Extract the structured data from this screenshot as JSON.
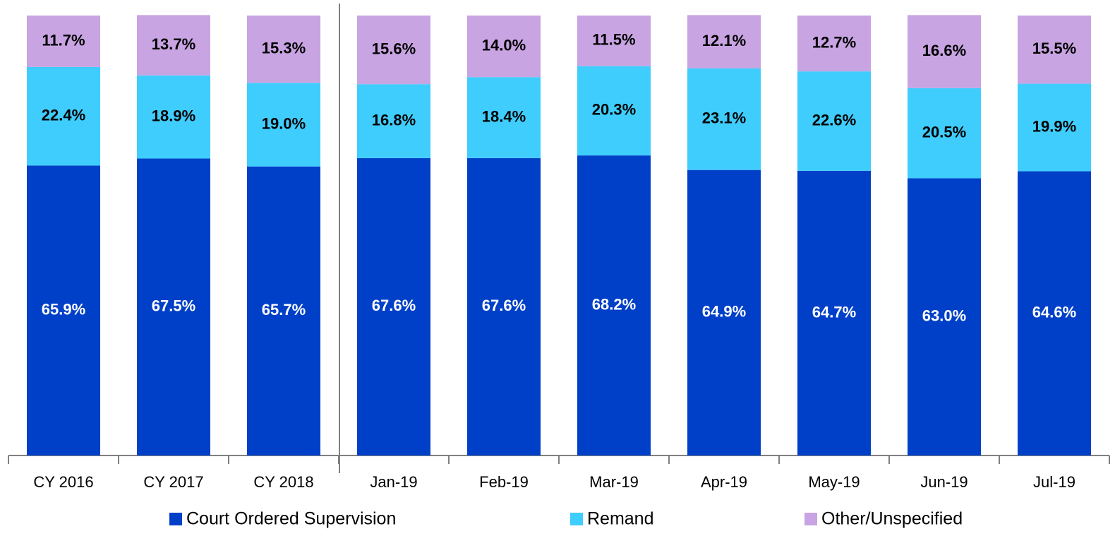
{
  "chart_data": {
    "type": "stacked_bar",
    "categories": [
      "CY 2016",
      "CY 2017",
      "CY 2018",
      "Jan-19",
      "Feb-19",
      "Mar-19",
      "Apr-19",
      "May-19",
      "Jun-19",
      "Jul-19"
    ],
    "ylim": [
      0,
      100
    ],
    "series": [
      {
        "name": "Court Ordered Supervision",
        "color": "#0040c8",
        "label_color": "#ffffff",
        "values": [
          65.9,
          67.5,
          65.7,
          67.6,
          67.6,
          68.2,
          64.9,
          64.7,
          63.0,
          64.6
        ],
        "value_labels": [
          "65.9%",
          "67.5%",
          "65.7%",
          "67.6%",
          "67.6%",
          "68.2%",
          "64.9%",
          "64.7%",
          "63.0%",
          "64.6%"
        ]
      },
      {
        "name": "Remand",
        "color": "#3fcdfd",
        "label_color": "#000000",
        "values": [
          22.4,
          18.9,
          19.0,
          16.8,
          18.4,
          20.3,
          23.1,
          22.6,
          20.5,
          19.9
        ],
        "value_labels": [
          "22.4%",
          "18.9%",
          "19.0%",
          "16.8%",
          "18.4%",
          "20.3%",
          "23.1%",
          "22.6%",
          "20.5%",
          "19.9%"
        ]
      },
      {
        "name": "Other/Unspecified",
        "color": "#c8a4e2",
        "label_color": "#000000",
        "values": [
          11.7,
          13.7,
          15.3,
          15.6,
          14.0,
          11.5,
          12.1,
          12.7,
          16.6,
          15.5
        ],
        "value_labels": [
          "11.7%",
          "13.7%",
          "15.3%",
          "15.6%",
          "14.0%",
          "11.5%",
          "12.1%",
          "12.7%",
          "16.6%",
          "15.5%"
        ]
      }
    ]
  }
}
